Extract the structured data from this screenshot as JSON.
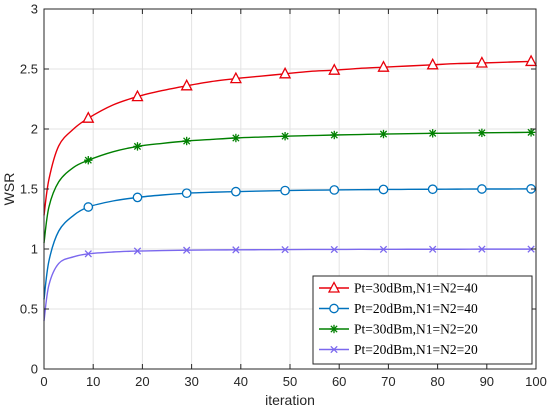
{
  "chart_data": {
    "type": "line",
    "title": "",
    "xlabel": "iteration",
    "ylabel": "WSR",
    "xlim": [
      0,
      100
    ],
    "ylim": [
      0,
      3
    ],
    "xticks": [
      "0",
      "10",
      "20",
      "30",
      "40",
      "50",
      "60",
      "70",
      "80",
      "90",
      "100"
    ],
    "yticks": [
      "0",
      "0.5",
      "1",
      "1.5",
      "2",
      "2.5",
      "3"
    ],
    "grid": true,
    "legend_position": "bottom-right",
    "series": [
      {
        "name": "Pt=30dBm,N1=N2=40",
        "color": "#e8000b",
        "marker": "triangle",
        "x": [
          0,
          1,
          3,
          6,
          9,
          14,
          19,
          24,
          29,
          34,
          39,
          44,
          49,
          54,
          59,
          64,
          69,
          74,
          79,
          84,
          89,
          94,
          99
        ],
        "y": [
          1.28,
          1.58,
          1.86,
          2.0,
          2.09,
          2.2,
          2.27,
          2.32,
          2.36,
          2.395,
          2.42,
          2.44,
          2.46,
          2.48,
          2.49,
          2.505,
          2.515,
          2.525,
          2.535,
          2.545,
          2.55,
          2.557,
          2.563
        ],
        "marker_x": [
          9,
          19,
          29,
          39,
          49,
          59,
          69,
          79,
          89,
          99
        ],
        "marker_y": [
          2.09,
          2.27,
          2.36,
          2.42,
          2.46,
          2.49,
          2.515,
          2.535,
          2.55,
          2.563
        ]
      },
      {
        "name": "Pt=20dBm,N1=N2=40",
        "color": "#0072bd",
        "marker": "circle",
        "x": [
          0,
          1,
          3,
          6,
          9,
          14,
          19,
          24,
          29,
          34,
          39,
          44,
          49,
          54,
          59,
          64,
          69,
          74,
          79,
          84,
          89,
          94,
          99
        ],
        "y": [
          0.58,
          0.9,
          1.15,
          1.28,
          1.35,
          1.4,
          1.43,
          1.45,
          1.465,
          1.473,
          1.478,
          1.483,
          1.487,
          1.49,
          1.492,
          1.494,
          1.496,
          1.497,
          1.498,
          1.499,
          1.5,
          1.5,
          1.501
        ],
        "marker_x": [
          9,
          19,
          29,
          39,
          49,
          59,
          69,
          79,
          89,
          99
        ],
        "marker_y": [
          1.35,
          1.43,
          1.465,
          1.478,
          1.487,
          1.492,
          1.496,
          1.498,
          1.5,
          1.501
        ]
      },
      {
        "name": "Pt=30dBm,N1=N2=20",
        "color": "#008000",
        "marker": "star",
        "x": [
          0,
          1,
          3,
          6,
          9,
          14,
          19,
          24,
          29,
          34,
          39,
          44,
          49,
          54,
          59,
          64,
          69,
          74,
          79,
          84,
          89,
          94,
          99
        ],
        "y": [
          1.05,
          1.35,
          1.56,
          1.68,
          1.74,
          1.81,
          1.855,
          1.88,
          1.9,
          1.913,
          1.925,
          1.933,
          1.94,
          1.945,
          1.95,
          1.954,
          1.958,
          1.961,
          1.964,
          1.966,
          1.968,
          1.97,
          1.972
        ],
        "marker_x": [
          9,
          19,
          29,
          39,
          49,
          59,
          69,
          79,
          89,
          99
        ],
        "marker_y": [
          1.74,
          1.855,
          1.9,
          1.925,
          1.94,
          1.95,
          1.958,
          1.964,
          1.968,
          1.972
        ]
      },
      {
        "name": "Pt=20dBm,N1=N2=20",
        "color": "#7b68ee",
        "marker": "x",
        "x": [
          0,
          1,
          3,
          6,
          9,
          14,
          19,
          24,
          29,
          34,
          39,
          44,
          49,
          54,
          59,
          64,
          69,
          74,
          79,
          84,
          89,
          94,
          99
        ],
        "y": [
          0.4,
          0.7,
          0.88,
          0.935,
          0.96,
          0.975,
          0.983,
          0.987,
          0.99,
          0.992,
          0.993,
          0.994,
          0.995,
          0.996,
          0.996,
          0.997,
          0.997,
          0.998,
          0.998,
          0.998,
          0.999,
          0.999,
          0.999
        ],
        "marker_x": [
          9,
          19,
          29,
          39,
          49,
          59,
          69,
          79,
          89,
          99
        ],
        "marker_y": [
          0.96,
          0.983,
          0.99,
          0.993,
          0.995,
          0.996,
          0.997,
          0.998,
          0.999,
          0.999
        ]
      }
    ]
  }
}
